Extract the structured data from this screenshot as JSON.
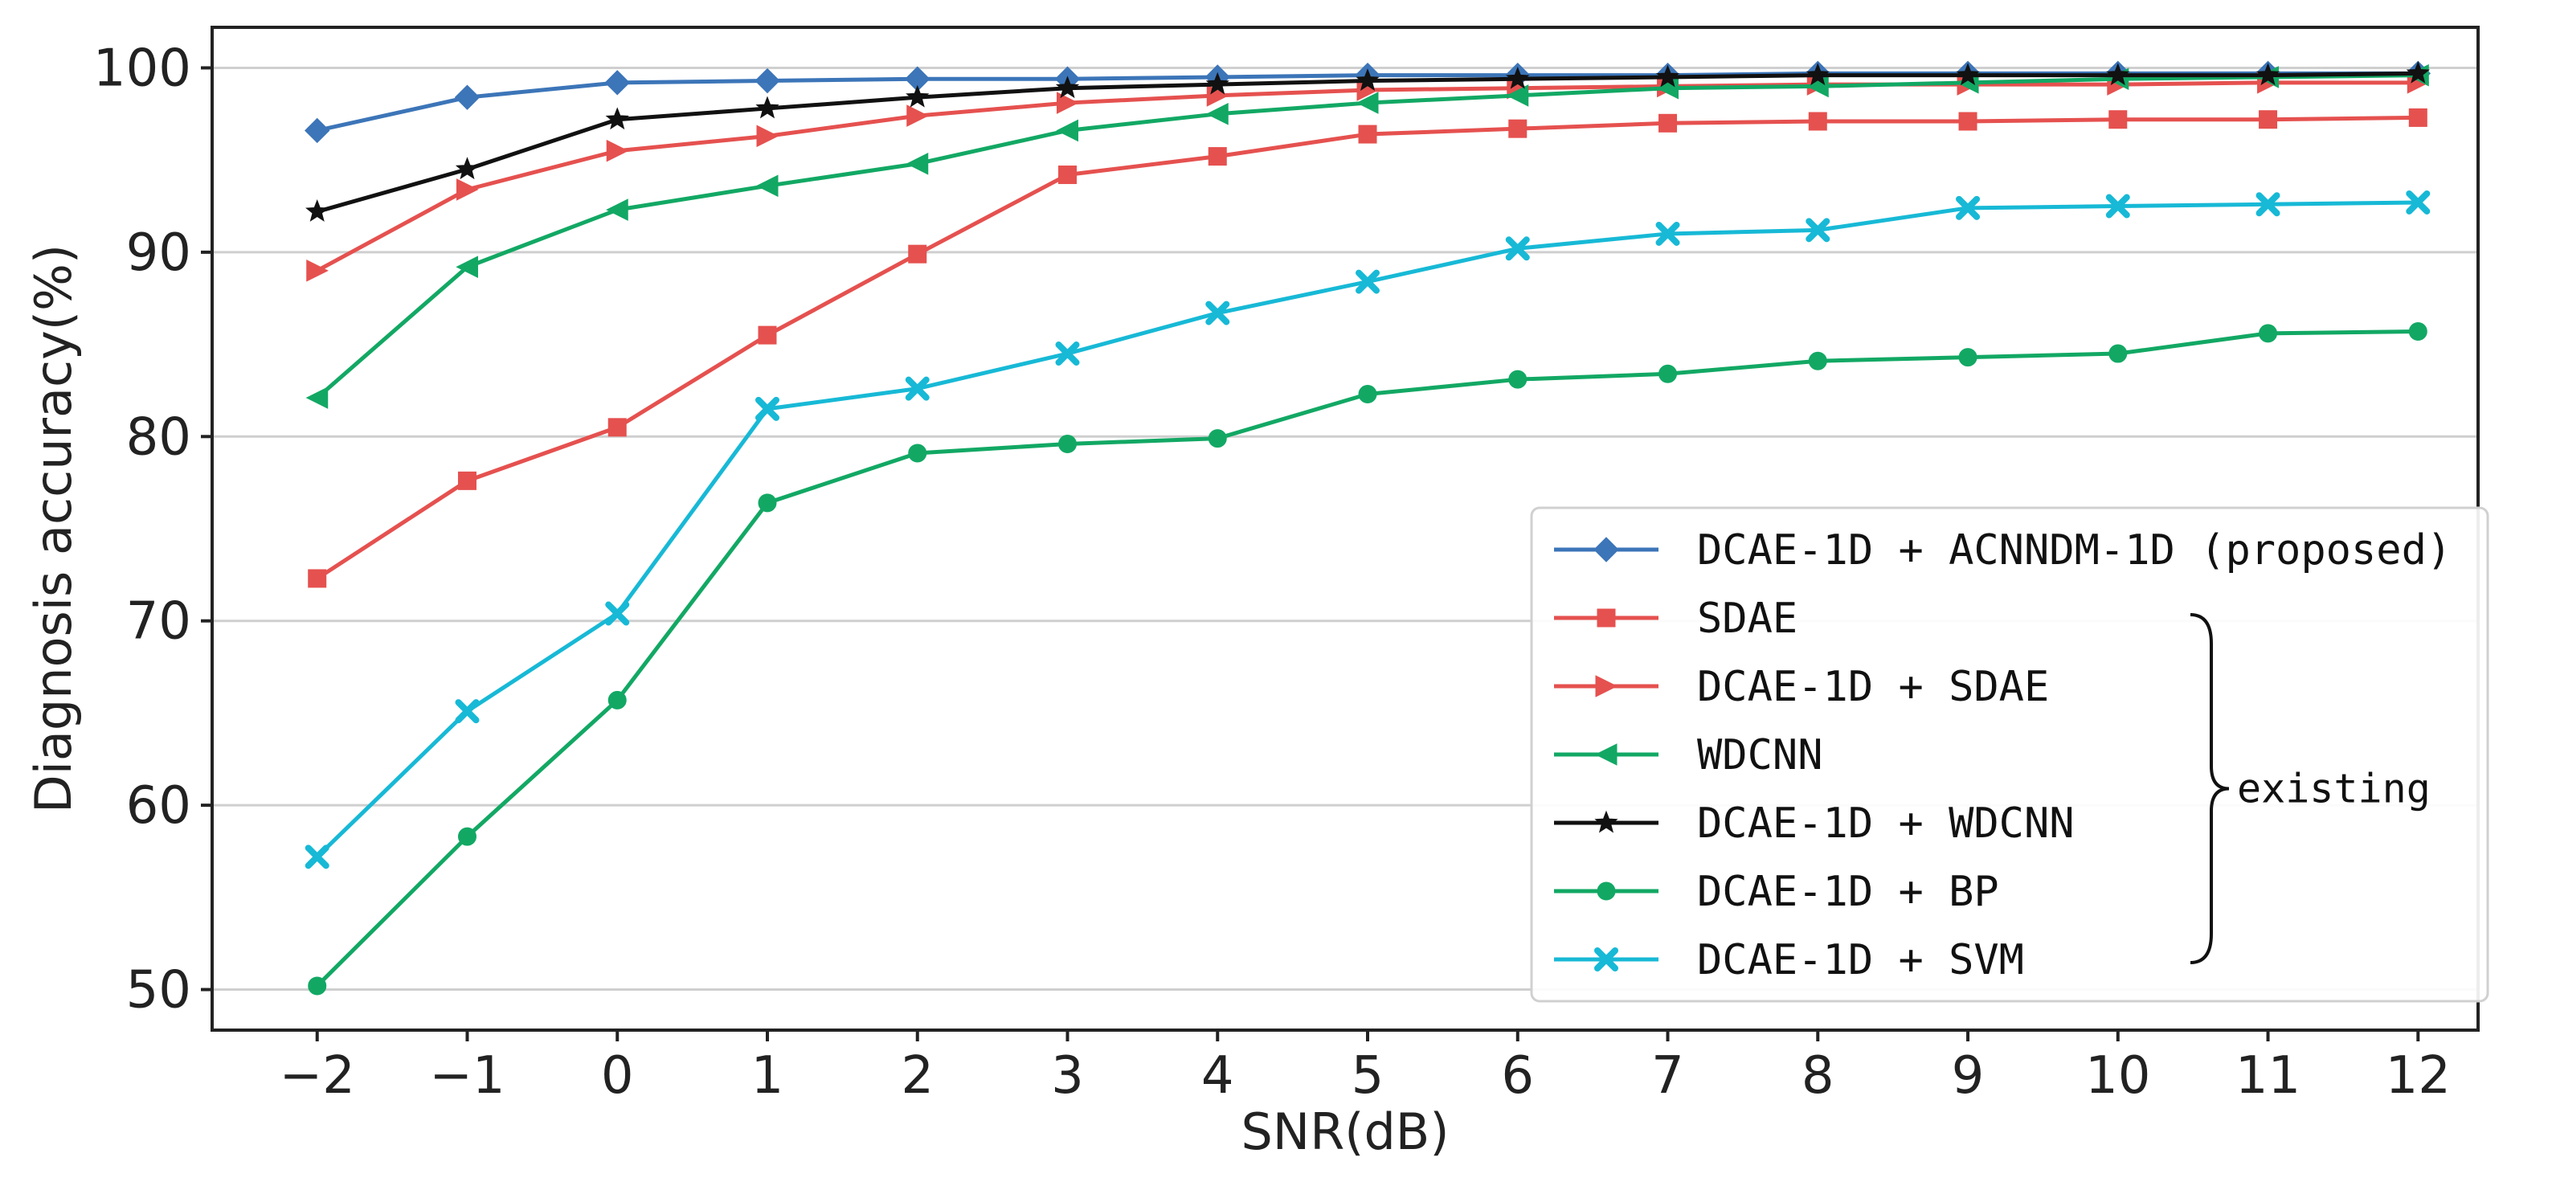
{
  "chart_data": {
    "type": "line",
    "title": "",
    "xlabel": "SNR(dB)",
    "ylabel": "Diagnosis accuracy(%)",
    "x": [
      -2,
      -1,
      0,
      1,
      2,
      3,
      4,
      5,
      6,
      7,
      8,
      9,
      10,
      11,
      12
    ],
    "x_tick_labels": [
      "−2",
      "−1",
      "0",
      "1",
      "2",
      "3",
      "4",
      "5",
      "6",
      "7",
      "8",
      "9",
      "10",
      "11",
      "12"
    ],
    "y_ticks": [
      50,
      60,
      70,
      80,
      90,
      100
    ],
    "y_tick_labels": [
      "50",
      "60",
      "70",
      "80",
      "90",
      "100"
    ],
    "xlim": [
      -2.7,
      12.4
    ],
    "ylim": [
      47.8,
      102.2
    ],
    "grid": "horizontal",
    "legend_position": "bottom-right",
    "series": [
      {
        "name": "DCAE-1D + ACNNDM-1D (proposed)",
        "color": "#3c75b8",
        "marker": "diamond",
        "values": [
          96.6,
          98.4,
          99.2,
          99.3,
          99.4,
          99.4,
          99.5,
          99.6,
          99.6,
          99.6,
          99.7,
          99.7,
          99.7,
          99.7,
          99.7
        ]
      },
      {
        "name": "SDAE",
        "color": "#e5514f",
        "marker": "square",
        "values": [
          72.3,
          77.6,
          80.5,
          85.5,
          89.9,
          94.2,
          95.2,
          96.4,
          96.7,
          97.0,
          97.1,
          97.1,
          97.2,
          97.2,
          97.3
        ]
      },
      {
        "name": "DCAE-1D + SDAE",
        "color": "#e5514f",
        "marker": "triangle-right",
        "values": [
          89.0,
          93.4,
          95.5,
          96.3,
          97.4,
          98.1,
          98.5,
          98.8,
          98.9,
          99.0,
          99.1,
          99.1,
          99.1,
          99.2,
          99.2
        ]
      },
      {
        "name": "WDCNN",
        "color": "#12a864",
        "marker": "triangle-left",
        "values": [
          82.1,
          89.2,
          92.3,
          93.6,
          94.8,
          96.6,
          97.5,
          98.1,
          98.5,
          98.9,
          99.0,
          99.2,
          99.4,
          99.5,
          99.6
        ]
      },
      {
        "name": "DCAE-1D + WDCNN",
        "color": "#111111",
        "marker": "star",
        "values": [
          92.2,
          94.5,
          97.2,
          97.8,
          98.4,
          98.9,
          99.1,
          99.3,
          99.4,
          99.5,
          99.6,
          99.6,
          99.6,
          99.6,
          99.7
        ]
      },
      {
        "name": "DCAE-1D + BP",
        "color": "#12a864",
        "marker": "circle",
        "values": [
          50.2,
          58.3,
          65.7,
          76.4,
          79.1,
          79.6,
          79.9,
          82.3,
          83.1,
          83.4,
          84.1,
          84.3,
          84.5,
          85.6,
          85.7
        ]
      },
      {
        "name": "DCAE-1D + SVM",
        "color": "#17b9d6",
        "marker": "x",
        "values": [
          57.2,
          65.1,
          70.4,
          81.5,
          82.6,
          84.5,
          86.7,
          88.4,
          90.2,
          91.0,
          91.2,
          92.4,
          92.5,
          92.6,
          92.7
        ]
      }
    ],
    "annotations": [
      {
        "text": "existing",
        "type": "brace",
        "applies_to": [
          "SDAE",
          "DCAE-1D + SDAE",
          "WDCNN",
          "DCAE-1D + WDCNN",
          "DCAE-1D + BP",
          "DCAE-1D + SVM"
        ]
      }
    ]
  }
}
